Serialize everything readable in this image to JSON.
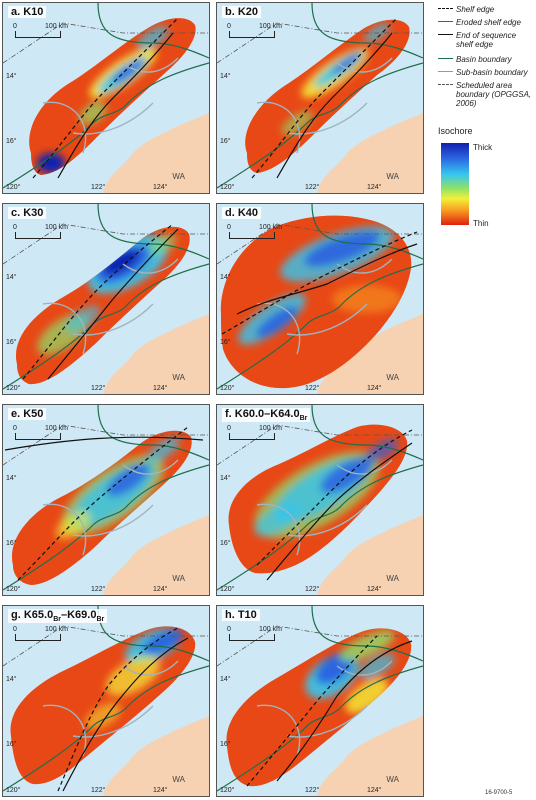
{
  "panels": [
    {
      "id": "a",
      "title": "a. K10",
      "dominant": "red"
    },
    {
      "id": "b",
      "title": "b. K20",
      "dominant": "red"
    },
    {
      "id": "c",
      "title": "c. K30",
      "dominant": "mixed"
    },
    {
      "id": "d",
      "title": "d. K40",
      "dominant": "red"
    },
    {
      "id": "e",
      "title": "e. K50",
      "dominant": "mixed"
    },
    {
      "id": "f",
      "title": "f. K60.0–K64.0",
      "title_sub": "Br",
      "dominant": "mixed"
    },
    {
      "id": "g",
      "title": "g. K65.0",
      "title_sub": "Br",
      "title_mid": "–K69.0",
      "title_sub2": "Br",
      "dominant": "red"
    },
    {
      "id": "h",
      "title": "h. T10",
      "dominant": "red"
    }
  ],
  "map_labels": {
    "scale_zero": "0",
    "scale_km": "100 km",
    "lat_14": "14°",
    "lat_16": "16°",
    "lon_120": "120°",
    "lon_122": "122°",
    "lon_124": "124°",
    "region": "WA"
  },
  "legend": {
    "items": [
      {
        "label": "Shelf edge",
        "style": "dashed",
        "color": "#111111"
      },
      {
        "label": "Eroded shelf edge",
        "style": "solid",
        "color": "#e02020"
      },
      {
        "label": "End of sequence shelf edge",
        "style": "solid",
        "color": "#111111"
      },
      {
        "label": "Basin boundary",
        "style": "solid",
        "color": "#1e6e4a"
      },
      {
        "label": "Sub-basin boundary",
        "style": "solid",
        "color": "#5fb3a8"
      },
      {
        "label": "Scheduled area boundary (OPGGSA, 2006)",
        "style": "dashdot",
        "color": "#555555"
      }
    ],
    "isochore_title": "Isochore",
    "thick_label": "Thick",
    "thin_label": "Thin"
  },
  "colors": {
    "sea": "#cfe8f5",
    "land": "#f6d2b2",
    "thick": "#1020b0",
    "thin": "#e02010"
  },
  "figure_id": "16-9700-5"
}
